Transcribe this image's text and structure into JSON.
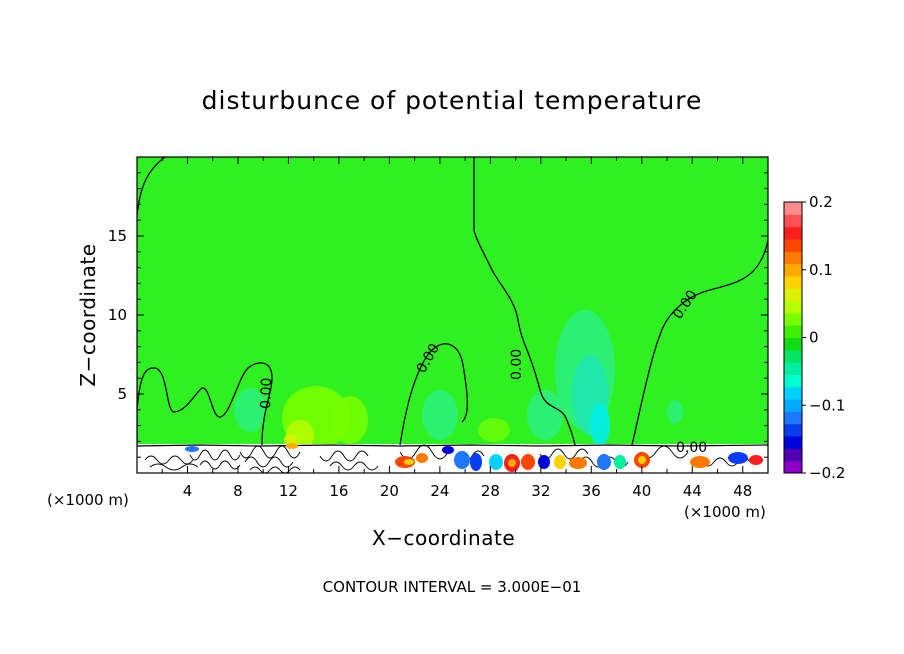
{
  "chart_data": {
    "type": "heatmap",
    "title": "disturbunce of potential temperature",
    "xlabel": "X−coordinate",
    "ylabel": "Z−coordinate",
    "x_unit_left": "(×1000 m)",
    "x_unit_right": "(×1000 m)",
    "xlim": [
      0,
      50
    ],
    "ylim": [
      0,
      20
    ],
    "x_ticks": [
      "4",
      "8",
      "12",
      "16",
      "20",
      "24",
      "28",
      "32",
      "36",
      "40",
      "44",
      "48"
    ],
    "y_ticks": [
      "5",
      "10",
      "15"
    ],
    "colorbar": {
      "range": [
        -0.2,
        0.2
      ],
      "tick_labels": [
        "0.2",
        "0.1",
        "0",
        "−0.1",
        "−0.2"
      ],
      "colors": [
        "#8b00c8",
        "#5000b4",
        "#0000dc",
        "#0a3cf0",
        "#1e78ff",
        "#00aaff",
        "#00d2ff",
        "#00ffd2",
        "#00f0a0",
        "#00e664",
        "#14dc14",
        "#3cf000",
        "#78ff00",
        "#b4ff00",
        "#dcf000",
        "#ffd200",
        "#ffaa00",
        "#ff7800",
        "#ff4600",
        "#ff1e1e",
        "#ff5050",
        "#ff8c8c"
      ]
    },
    "contour_labels": [
      "0.00",
      "0.00",
      "0.00",
      "0.00",
      "0.00",
      "0.00"
    ],
    "background_color": "#2ff021",
    "contour_interval_text": "CONTOUR INTERVAL = 3.000E−01"
  }
}
